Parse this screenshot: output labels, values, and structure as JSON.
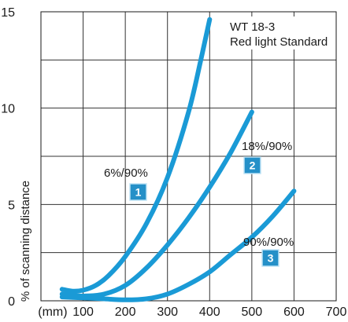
{
  "chart_data": {
    "type": "line",
    "title": "WT 18-3",
    "subtitle": "Red light Standard",
    "xlabel": "",
    "ylabel": "% of scanning distance",
    "x_unit_label": "(mm)",
    "xlim": [
      0,
      700
    ],
    "ylim": [
      0,
      15
    ],
    "x_ticks": [
      100,
      200,
      300,
      400,
      500,
      600,
      700
    ],
    "y_ticks": [
      0,
      5,
      10,
      15
    ],
    "x_gridlines": [
      100,
      200,
      300,
      400,
      500,
      600,
      700
    ],
    "y_gridlines": [
      2.5,
      5,
      7.5,
      10,
      12.5,
      15
    ],
    "grid": true,
    "series_color": "#1a9ad6",
    "series": [
      {
        "label": "6%/90%",
        "badge": "1",
        "points": [
          [
            50,
            0.6
          ],
          [
            75,
            0.5
          ],
          [
            100,
            0.55
          ],
          [
            130,
            0.8
          ],
          [
            160,
            1.3
          ],
          [
            200,
            2.3
          ],
          [
            250,
            4.0
          ],
          [
            300,
            6.4
          ],
          [
            350,
            9.8
          ],
          [
            380,
            12.6
          ],
          [
            400,
            14.6
          ]
        ]
      },
      {
        "label": "18%/90%",
        "badge": "2",
        "points": [
          [
            50,
            0.35
          ],
          [
            100,
            0.25
          ],
          [
            150,
            0.35
          ],
          [
            200,
            0.8
          ],
          [
            250,
            1.7
          ],
          [
            300,
            2.9
          ],
          [
            350,
            4.3
          ],
          [
            400,
            5.9
          ],
          [
            450,
            7.7
          ],
          [
            500,
            9.8
          ]
        ]
      },
      {
        "label": "90%/90%",
        "badge": "3",
        "points": [
          [
            50,
            0.2
          ],
          [
            100,
            0.15
          ],
          [
            150,
            0.1
          ],
          [
            200,
            0.05
          ],
          [
            250,
            0.1
          ],
          [
            300,
            0.35
          ],
          [
            350,
            0.85
          ],
          [
            400,
            1.5
          ],
          [
            450,
            2.4
          ],
          [
            500,
            3.3
          ],
          [
            550,
            4.4
          ],
          [
            600,
            5.7
          ]
        ]
      }
    ]
  }
}
